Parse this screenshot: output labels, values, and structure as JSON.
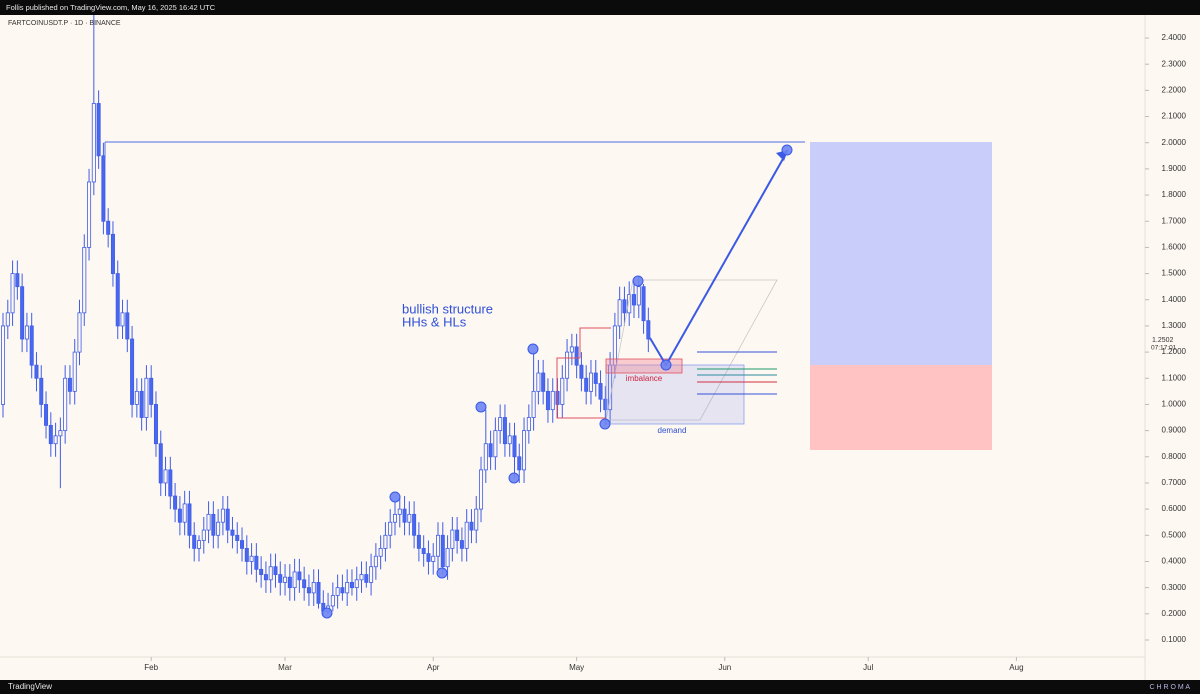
{
  "header": {
    "published": "Follis published on TradingView.com, May 16, 2025 16:42 UTC",
    "symbol": "FARTCOINUSDT.P · 1D · BINANCE"
  },
  "footer": {
    "brand": "TradingView",
    "watermark": "C H R O M A"
  },
  "chart_data": {
    "type": "candlestick",
    "annotations": [
      "bullish structure",
      "HHs & HLs",
      "imbalance",
      "demand"
    ],
    "last_price": {
      "value": 1.2502,
      "label": "1.2502"
    },
    "countdown": "07:17:01",
    "up_color": "#fdf8f1",
    "down_color": "#4a67f0",
    "line_color": "#3f5de8",
    "x": [
      0,
      1,
      2,
      3,
      4,
      5,
      6,
      7,
      8,
      9,
      10,
      11,
      12,
      13,
      14,
      15,
      16,
      17,
      18,
      19,
      20,
      21,
      22,
      23,
      24,
      25,
      26,
      27,
      28,
      29,
      30,
      31,
      32,
      33,
      34,
      35,
      36,
      37,
      38,
      39,
      40,
      41,
      42,
      43,
      44,
      45,
      46,
      47,
      48,
      49,
      50,
      51,
      52,
      53,
      54,
      55,
      56,
      57,
      58,
      59,
      60,
      61,
      62,
      63,
      64,
      65,
      66,
      67,
      68,
      69,
      70,
      71,
      72,
      73,
      74,
      75,
      76,
      77,
      78,
      79,
      80,
      81,
      82,
      83,
      84,
      85,
      86,
      87,
      88,
      89,
      90,
      91,
      92,
      93,
      94,
      95,
      96,
      97,
      98,
      99,
      100,
      101,
      102,
      103,
      104,
      105,
      106,
      107,
      108,
      109,
      110,
      111,
      112,
      113,
      114,
      115,
      116,
      117,
      118,
      119,
      120,
      121,
      122,
      123,
      124,
      125,
      126,
      127,
      128,
      129,
      130,
      131,
      132,
      133,
      134,
      135
    ],
    "open": [
      1.0,
      1.3,
      1.35,
      1.5,
      1.45,
      1.25,
      1.3,
      1.15,
      1.1,
      1.0,
      0.92,
      0.85,
      0.88,
      0.9,
      1.1,
      1.05,
      1.2,
      1.35,
      1.6,
      1.85,
      2.15,
      1.95,
      1.7,
      1.65,
      1.5,
      1.3,
      1.35,
      1.25,
      1.0,
      1.05,
      0.95,
      1.1,
      1.0,
      0.85,
      0.7,
      0.75,
      0.65,
      0.6,
      0.55,
      0.62,
      0.5,
      0.45,
      0.48,
      0.52,
      0.58,
      0.5,
      0.55,
      0.6,
      0.52,
      0.5,
      0.48,
      0.45,
      0.4,
      0.42,
      0.37,
      0.35,
      0.33,
      0.38,
      0.35,
      0.32,
      0.34,
      0.3,
      0.36,
      0.33,
      0.3,
      0.28,
      0.32,
      0.24,
      0.21,
      0.23,
      0.27,
      0.3,
      0.28,
      0.32,
      0.3,
      0.33,
      0.35,
      0.32,
      0.38,
      0.42,
      0.45,
      0.5,
      0.55,
      0.58,
      0.6,
      0.55,
      0.58,
      0.5,
      0.45,
      0.43,
      0.4,
      0.42,
      0.5,
      0.38,
      0.45,
      0.52,
      0.48,
      0.45,
      0.55,
      0.52,
      0.6,
      0.75,
      0.85,
      0.8,
      0.9,
      0.95,
      0.85,
      0.88,
      0.8,
      0.75,
      0.9,
      0.95,
      1.05,
      1.12,
      1.05,
      0.98,
      1.05,
      1.0,
      1.1,
      1.2,
      1.22,
      1.15,
      1.1,
      1.05,
      1.12,
      1.08,
      1.02,
      0.98,
      1.15,
      1.3,
      1.4,
      1.35,
      1.42,
      1.38,
      1.45,
      1.32
    ],
    "high": [
      1.35,
      1.4,
      1.55,
      1.55,
      1.5,
      1.35,
      1.35,
      1.2,
      1.15,
      1.05,
      0.97,
      0.93,
      0.95,
      1.15,
      1.15,
      1.25,
      1.4,
      1.65,
      1.9,
      2.55,
      2.2,
      2.0,
      1.75,
      1.7,
      1.55,
      1.4,
      1.4,
      1.3,
      1.1,
      1.1,
      1.15,
      1.15,
      1.05,
      0.9,
      0.8,
      0.8,
      0.7,
      0.65,
      0.67,
      0.67,
      0.55,
      0.5,
      0.57,
      0.63,
      0.63,
      0.6,
      0.65,
      0.65,
      0.57,
      0.55,
      0.53,
      0.5,
      0.47,
      0.47,
      0.42,
      0.4,
      0.43,
      0.43,
      0.4,
      0.39,
      0.39,
      0.41,
      0.41,
      0.38,
      0.35,
      0.37,
      0.37,
      0.29,
      0.28,
      0.32,
      0.35,
      0.35,
      0.37,
      0.37,
      0.38,
      0.4,
      0.4,
      0.43,
      0.47,
      0.5,
      0.55,
      0.6,
      0.63,
      0.65,
      0.65,
      0.63,
      0.63,
      0.55,
      0.5,
      0.48,
      0.47,
      0.55,
      0.55,
      0.5,
      0.57,
      0.57,
      0.53,
      0.6,
      0.6,
      0.65,
      0.8,
      0.98,
      0.9,
      0.95,
      1.0,
      1.0,
      0.93,
      0.93,
      0.85,
      0.95,
      1.0,
      1.2,
      1.17,
      1.17,
      1.1,
      1.1,
      1.1,
      1.15,
      1.25,
      1.27,
      1.27,
      1.2,
      1.15,
      1.17,
      1.17,
      1.13,
      1.07,
      1.2,
      1.35,
      1.45,
      1.45,
      1.47,
      1.47,
      1.49,
      1.46,
      1.37
    ],
    "low": [
      0.95,
      1.25,
      1.3,
      1.4,
      1.2,
      1.2,
      1.1,
      1.05,
      0.95,
      0.87,
      0.8,
      0.8,
      0.68,
      0.85,
      1.0,
      1.0,
      1.15,
      1.3,
      1.55,
      1.8,
      1.9,
      1.65,
      1.6,
      1.45,
      1.25,
      1.25,
      1.2,
      0.95,
      0.95,
      0.9,
      0.9,
      0.95,
      0.8,
      0.65,
      0.65,
      0.6,
      0.55,
      0.5,
      0.5,
      0.45,
      0.4,
      0.4,
      0.43,
      0.47,
      0.45,
      0.45,
      0.5,
      0.47,
      0.45,
      0.43,
      0.4,
      0.35,
      0.35,
      0.32,
      0.3,
      0.28,
      0.28,
      0.3,
      0.27,
      0.27,
      0.25,
      0.25,
      0.28,
      0.25,
      0.23,
      0.23,
      0.22,
      0.19,
      0.2,
      0.21,
      0.22,
      0.25,
      0.23,
      0.27,
      0.25,
      0.28,
      0.3,
      0.27,
      0.33,
      0.37,
      0.4,
      0.45,
      0.5,
      0.53,
      0.5,
      0.5,
      0.45,
      0.4,
      0.38,
      0.35,
      0.35,
      0.37,
      0.35,
      0.33,
      0.4,
      0.43,
      0.4,
      0.4,
      0.47,
      0.47,
      0.55,
      0.7,
      0.75,
      0.75,
      0.85,
      0.8,
      0.8,
      0.72,
      0.7,
      0.7,
      0.85,
      0.9,
      1.0,
      1.0,
      0.93,
      0.93,
      0.95,
      0.95,
      1.05,
      1.15,
      1.1,
      1.05,
      1.0,
      1.0,
      1.03,
      0.97,
      0.92,
      0.93,
      1.1,
      1.25,
      1.3,
      1.3,
      1.33,
      1.33,
      1.27,
      1.2
    ],
    "close": [
      1.3,
      1.35,
      1.5,
      1.45,
      1.25,
      1.3,
      1.15,
      1.1,
      1.0,
      0.92,
      0.85,
      0.88,
      0.9,
      1.1,
      1.05,
      1.2,
      1.35,
      1.6,
      1.85,
      2.15,
      1.95,
      1.7,
      1.65,
      1.5,
      1.3,
      1.35,
      1.25,
      1.0,
      1.05,
      0.95,
      1.1,
      1.0,
      0.85,
      0.7,
      0.75,
      0.65,
      0.6,
      0.55,
      0.62,
      0.5,
      0.45,
      0.48,
      0.52,
      0.58,
      0.5,
      0.55,
      0.6,
      0.52,
      0.5,
      0.48,
      0.45,
      0.4,
      0.42,
      0.37,
      0.35,
      0.33,
      0.38,
      0.35,
      0.32,
      0.34,
      0.3,
      0.36,
      0.33,
      0.3,
      0.28,
      0.32,
      0.24,
      0.21,
      0.23,
      0.27,
      0.3,
      0.28,
      0.32,
      0.3,
      0.33,
      0.35,
      0.32,
      0.38,
      0.42,
      0.45,
      0.5,
      0.55,
      0.58,
      0.6,
      0.55,
      0.58,
      0.5,
      0.45,
      0.43,
      0.4,
      0.42,
      0.5,
      0.38,
      0.45,
      0.52,
      0.48,
      0.45,
      0.55,
      0.52,
      0.6,
      0.75,
      0.85,
      0.8,
      0.9,
      0.95,
      0.85,
      0.88,
      0.8,
      0.75,
      0.9,
      0.95,
      1.05,
      1.12,
      1.05,
      0.98,
      1.05,
      1.0,
      1.1,
      1.2,
      1.22,
      1.15,
      1.1,
      1.05,
      1.12,
      1.08,
      1.02,
      0.98,
      1.15,
      1.3,
      1.4,
      1.35,
      1.42,
      1.38,
      1.45,
      1.32,
      1.25
    ],
    "xlim": [
      -0.63,
      238.9
    ],
    "xticks": [
      {
        "value": 31,
        "label": "Feb"
      },
      {
        "value": 59,
        "label": "Mar"
      },
      {
        "value": 90,
        "label": "Apr"
      },
      {
        "value": 120,
        "label": "May"
      },
      {
        "value": 151,
        "label": "Jun"
      },
      {
        "value": 181,
        "label": "Jul"
      },
      {
        "value": 212,
        "label": "Aug"
      }
    ],
    "ylim": [
      0.035,
      2.488
    ],
    "yticks": [
      {
        "value": 0.1,
        "label": "0.1000"
      },
      {
        "value": 0.2,
        "label": "0.2000"
      },
      {
        "value": 0.3,
        "label": "0.3000"
      },
      {
        "value": 0.4,
        "label": "0.4000"
      },
      {
        "value": 0.5,
        "label": "0.5000"
      },
      {
        "value": 0.6,
        "label": "0.6000"
      },
      {
        "value": 0.7,
        "label": "0.7000"
      },
      {
        "value": 0.8,
        "label": "0.8000"
      },
      {
        "value": 0.9,
        "label": "0.9000"
      },
      {
        "value": 1.0,
        "label": "1.0000"
      },
      {
        "value": 1.1,
        "label": "1.1000"
      },
      {
        "value": 1.2,
        "label": "1.2000"
      },
      {
        "value": 1.3,
        "label": "1.3000"
      },
      {
        "value": 1.4,
        "label": "1.4000"
      },
      {
        "value": 1.5,
        "label": "1.5000"
      },
      {
        "value": 1.6,
        "label": "1.6000"
      },
      {
        "value": 1.7,
        "label": "1.7000"
      },
      {
        "value": 1.8,
        "label": "1.8000"
      },
      {
        "value": 1.9,
        "label": "1.9000"
      },
      {
        "value": 2.0,
        "label": "2.0000"
      },
      {
        "value": 2.1,
        "label": "2.1000"
      },
      {
        "value": 2.2,
        "label": "2.2000"
      },
      {
        "value": 2.3,
        "label": "2.3000"
      },
      {
        "value": 2.4,
        "label": "2.4000"
      }
    ]
  }
}
